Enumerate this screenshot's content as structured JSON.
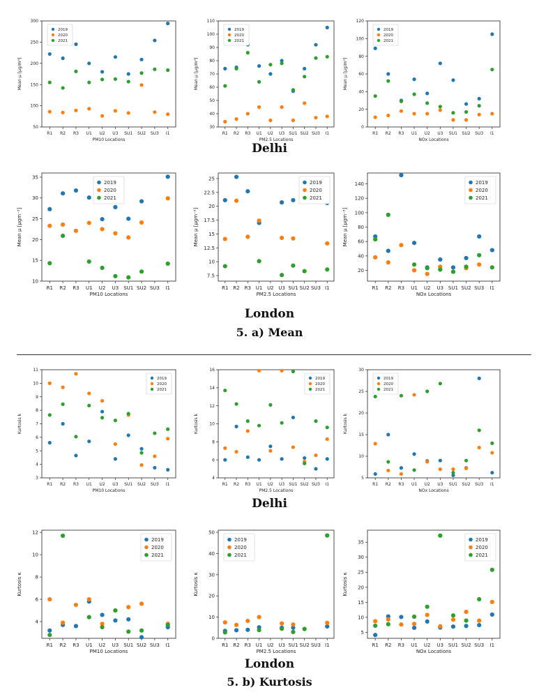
{
  "captions": {
    "delhi_mean": "Delhi",
    "london_mean": "London",
    "mean_label": "5.  a) Mean",
    "delhi_kurt": "Delhi",
    "london_kurt": "London",
    "kurt_label": "5.  b) Kurtosis"
  },
  "colors": {
    "2019": "#1f77b4",
    "2020": "#ff7f0e",
    "2021": "#2ca02c"
  },
  "chart_data": [
    {
      "id": "delhi-mean-pm10",
      "type": "scatter",
      "title": "",
      "xlabel": "PM10 Locations",
      "ylabel": "Mean μ [μg/m³]",
      "categories": [
        "R1",
        "R2",
        "R3",
        "U1",
        "U2",
        "U3",
        "SU1",
        "SU2",
        "SU3",
        "I1"
      ],
      "ylim": [
        50,
        300
      ],
      "yticks": [
        50,
        100,
        150,
        200,
        250,
        300
      ],
      "legend": "top-left",
      "series": [
        {
          "name": "2019",
          "values": [
            222,
            212,
            245,
            200,
            180,
            215,
            175,
            209,
            254,
            294
          ]
        },
        {
          "name": "2020",
          "values": [
            86,
            84,
            89,
            93,
            76,
            88,
            83,
            149,
            85,
            80
          ]
        },
        {
          "name": "2021",
          "values": [
            155,
            142,
            181,
            155,
            162,
            163,
            157,
            177,
            186,
            184
          ]
        }
      ]
    },
    {
      "id": "delhi-mean-pm25",
      "type": "scatter",
      "title": "",
      "xlabel": "PM2.5 Locations",
      "ylabel": "Mean μ [μg/m³]",
      "categories": [
        "R1",
        "R2",
        "R3",
        "U1",
        "U2",
        "U3",
        "SU1",
        "SU2",
        "SU3",
        "I1"
      ],
      "ylim": [
        30,
        110
      ],
      "yticks": [
        30,
        40,
        50,
        60,
        70,
        80,
        90,
        100,
        110
      ],
      "legend": "top-left",
      "series": [
        {
          "name": "2019",
          "values": [
            74,
            75,
            92,
            76,
            70,
            80,
            57,
            74,
            92,
            105
          ]
        },
        {
          "name": "2020",
          "values": [
            34,
            36,
            40,
            45,
            35,
            45,
            35,
            48,
            37,
            38
          ]
        },
        {
          "name": "2021",
          "values": [
            61,
            74,
            86,
            64,
            77,
            78,
            58,
            68,
            82,
            83
          ]
        }
      ]
    },
    {
      "id": "delhi-mean-nox",
      "type": "scatter",
      "title": "",
      "xlabel": "NOx Locations",
      "ylabel": "Mean μ [μg/m³]",
      "categories": [
        "R1",
        "R2",
        "R3",
        "U1",
        "U2",
        "U3",
        "SU1",
        "SU2",
        "SU3",
        "I1"
      ],
      "ylim": [
        0,
        120
      ],
      "yticks": [
        0,
        20,
        40,
        60,
        80,
        100,
        120
      ],
      "legend": "top-left",
      "series": [
        {
          "name": "2019",
          "values": [
            89,
            60,
            30,
            54,
            38,
            72,
            53,
            26,
            32,
            105
          ]
        },
        {
          "name": "2020",
          "values": [
            11,
            13,
            18,
            15,
            15,
            19,
            8,
            8,
            14,
            15
          ]
        },
        {
          "name": "2021",
          "values": [
            35,
            52,
            29,
            37,
            27,
            23,
            16,
            17,
            24,
            65
          ]
        }
      ]
    },
    {
      "id": "london-mean-pm10",
      "type": "scatter",
      "title": "",
      "xlabel": "PM10 Locations",
      "ylabel": "Mean μ [μgm⁻³]",
      "categories": [
        "R1",
        "R2",
        "R3",
        "U1",
        "U2",
        "U3",
        "SU1",
        "SU2",
        "SU3",
        "I1"
      ],
      "ylim": [
        10,
        36
      ],
      "yticks": [
        10,
        15,
        20,
        25,
        30,
        35
      ],
      "legend": "top-center",
      "series": [
        {
          "name": "2019",
          "values": [
            27.3,
            31.1,
            31.8,
            30.1,
            24.9,
            27.8,
            25.0,
            29.2,
            null,
            35.1
          ]
        },
        {
          "name": "2020",
          "values": [
            23.3,
            23.6,
            22.1,
            24.0,
            22.5,
            21.5,
            20.5,
            24.1,
            null,
            29.9
          ]
        },
        {
          "name": "2021",
          "values": [
            14.3,
            20.9,
            null,
            14.7,
            13.2,
            11.2,
            10.9,
            12.3,
            null,
            14.2
          ]
        }
      ]
    },
    {
      "id": "london-mean-pm25",
      "type": "scatter",
      "title": "",
      "xlabel": "PM2.5 Locations",
      "ylabel": "Mean μ [μgm⁻³]",
      "categories": [
        "R1",
        "R2",
        "R3",
        "U1",
        "U2",
        "U3",
        "SU1",
        "SU2",
        "SU3",
        "I1"
      ],
      "ylim": [
        6.5,
        26
      ],
      "yticks": [
        7.5,
        10.0,
        12.5,
        15.0,
        17.5,
        20.0,
        22.5,
        25.0
      ],
      "legend": "top-right",
      "series": [
        {
          "name": "2019",
          "values": [
            21.1,
            25.3,
            22.7,
            17.0,
            null,
            20.7,
            21.1,
            null,
            null,
            20.6
          ]
        },
        {
          "name": "2020",
          "values": [
            14.1,
            21.0,
            14.5,
            17.4,
            null,
            14.3,
            14.2,
            null,
            null,
            13.3
          ]
        },
        {
          "name": "2021",
          "values": [
            9.2,
            null,
            null,
            10.1,
            null,
            7.6,
            9.3,
            8.3,
            null,
            8.6
          ]
        }
      ]
    },
    {
      "id": "london-mean-nox",
      "type": "scatter",
      "title": "",
      "xlabel": "NOx Locations",
      "ylabel": "Mean μ [μgm⁻³]",
      "categories": [
        "R1",
        "R2",
        "R3",
        "U1",
        "U2",
        "U3",
        "SU1",
        "SU2",
        "SU3",
        "I1"
      ],
      "ylim": [
        5,
        155
      ],
      "yticks": [
        20,
        40,
        60,
        80,
        100,
        120,
        140
      ],
      "legend": "top-right",
      "series": [
        {
          "name": "2019",
          "values": [
            67,
            47,
            152,
            58,
            24,
            35,
            24,
            37,
            67,
            48
          ]
        },
        {
          "name": "2020",
          "values": [
            38,
            31,
            55,
            20,
            15,
            25,
            18,
            23,
            28,
            null
          ]
        },
        {
          "name": "2021",
          "values": [
            63,
            97,
            null,
            28,
            23,
            21,
            18,
            25,
            41,
            24
          ]
        }
      ]
    },
    {
      "id": "delhi-kurt-pm10",
      "type": "scatter",
      "title": "",
      "xlabel": "PM10 Locations",
      "ylabel": "Kurtosis k",
      "categories": [
        "R1",
        "R2",
        "R3",
        "U1",
        "U2",
        "U3",
        "SU1",
        "SU2",
        "SU3",
        "I1"
      ],
      "ylim": [
        3,
        11
      ],
      "yticks": [
        3,
        4,
        5,
        6,
        7,
        8,
        9,
        10,
        11
      ],
      "legend": "top-right",
      "series": [
        {
          "name": "2019",
          "values": [
            5.6,
            7.0,
            4.65,
            5.7,
            7.9,
            4.4,
            6.15,
            5.15,
            3.75,
            3.6
          ]
        },
        {
          "name": "2020",
          "values": [
            10.0,
            9.7,
            10.7,
            9.25,
            8.7,
            5.5,
            7.65,
            3.95,
            4.6,
            5.9
          ]
        },
        {
          "name": "2021",
          "values": [
            7.65,
            8.45,
            6.05,
            8.35,
            7.45,
            7.25,
            7.75,
            4.85,
            6.3,
            6.6
          ]
        }
      ]
    },
    {
      "id": "delhi-kurt-pm25",
      "type": "scatter",
      "title": "",
      "xlabel": "PM2.5 Locations",
      "ylabel": "Kurtosis k",
      "categories": [
        "R1",
        "R2",
        "R3",
        "U1",
        "U2",
        "U3",
        "SU1",
        "SU2",
        "SU3",
        "I1"
      ],
      "ylim": [
        4,
        16
      ],
      "yticks": [
        4,
        6,
        8,
        10,
        12,
        14,
        16
      ],
      "legend": "top-right",
      "series": [
        {
          "name": "2019",
          "values": [
            6.0,
            9.7,
            6.3,
            6.0,
            7.5,
            6.1,
            10.7,
            6.2,
            5.0,
            6.1
          ]
        },
        {
          "name": "2020",
          "values": [
            7.3,
            6.9,
            9.2,
            15.9,
            7.0,
            15.9,
            7.4,
            5.8,
            6.5,
            8.3
          ]
        },
        {
          "name": "2021",
          "values": [
            13.7,
            12.2,
            10.3,
            9.8,
            12.1,
            10.1,
            15.8,
            5.6,
            10.3,
            9.6
          ]
        }
      ]
    },
    {
      "id": "delhi-kurt-nox",
      "type": "scatter",
      "title": "",
      "xlabel": "NOx Locations",
      "ylabel": "Kurtosis k",
      "categories": [
        "R1",
        "R2",
        "R3",
        "U1",
        "U2",
        "U3",
        "SU1",
        "SU2",
        "SU3",
        "I1"
      ],
      "ylim": [
        5,
        30
      ],
      "yticks": [
        5,
        10,
        15,
        20,
        25,
        30
      ],
      "legend": "top-left",
      "series": [
        {
          "name": "2019",
          "values": [
            5.9,
            15.0,
            7.3,
            10.5,
            8.9,
            9.0,
            5.6,
            7.3,
            28.0,
            6.2
          ]
        },
        {
          "name": "2020",
          "values": [
            12.9,
            6.7,
            5.9,
            24.2,
            8.7,
            7.0,
            7.0,
            7.2,
            12.0,
            10.8
          ]
        },
        {
          "name": "2021",
          "values": [
            23.8,
            8.7,
            24.0,
            6.8,
            25.0,
            26.8,
            6.2,
            9.0,
            16.0,
            13.0
          ]
        }
      ]
    },
    {
      "id": "london-kurt-pm10",
      "type": "scatter",
      "title": "",
      "xlabel": "PM10 Locations",
      "ylabel": "Kurtosis κ",
      "categories": [
        "R1",
        "R2",
        "R3",
        "U1",
        "U2",
        "U3",
        "SU1",
        "SU2",
        "SU3",
        "I1"
      ],
      "ylim": [
        2.5,
        12.2
      ],
      "yticks": [
        4,
        6,
        8,
        10,
        12
      ],
      "legend": "top-right",
      "series": [
        {
          "name": "2019",
          "values": [
            3.2,
            3.7,
            3.6,
            5.8,
            4.6,
            4.1,
            4.2,
            2.6,
            null,
            3.5
          ]
        },
        {
          "name": "2020",
          "values": [
            6.0,
            3.9,
            5.5,
            6.0,
            3.8,
            5.0,
            5.3,
            5.6,
            null,
            3.8
          ]
        },
        {
          "name": "2021",
          "values": [
            2.8,
            11.7,
            null,
            4.4,
            3.5,
            5.0,
            3.1,
            3.2,
            null,
            3.7
          ]
        }
      ]
    },
    {
      "id": "london-kurt-pm25",
      "type": "scatter",
      "title": "",
      "xlabel": "PM2.5 Locations",
      "ylabel": "Kurtosis κ",
      "categories": [
        "R1",
        "R2",
        "R3",
        "U1",
        "U2",
        "U3",
        "SU1",
        "SU2",
        "SU3",
        "I1"
      ],
      "ylim": [
        0,
        51
      ],
      "yticks": [
        0,
        10,
        20,
        30,
        40,
        50
      ],
      "legend": "top-left",
      "series": [
        {
          "name": "2019",
          "values": [
            3.5,
            3.8,
            4.0,
            5.2,
            null,
            5.0,
            5.0,
            null,
            null,
            5.6
          ]
        },
        {
          "name": "2020",
          "values": [
            7.5,
            6.3,
            8.2,
            10.0,
            null,
            7.0,
            6.5,
            null,
            null,
            7.3
          ]
        },
        {
          "name": "2021",
          "values": [
            2.8,
            null,
            null,
            3.9,
            null,
            4.5,
            3.0,
            4.4,
            null,
            48.5
          ]
        }
      ]
    },
    {
      "id": "london-kurt-nox",
      "type": "scatter",
      "title": "",
      "xlabel": "NOx Locations",
      "ylabel": "Kurtosis κ",
      "categories": [
        "R1",
        "R2",
        "R3",
        "U1",
        "U2",
        "U3",
        "SU1",
        "SU2",
        "SU3",
        "I1"
      ],
      "ylim": [
        3,
        39
      ],
      "yticks": [
        5,
        10,
        15,
        20,
        25,
        30,
        35
      ],
      "legend": "top-right",
      "series": [
        {
          "name": "2019",
          "values": [
            4.1,
            10.3,
            10.1,
            6.5,
            8.6,
            6.6,
            6.9,
            7.1,
            7.4,
            10.9
          ]
        },
        {
          "name": "2020",
          "values": [
            8.7,
            9.3,
            7.6,
            7.8,
            10.8,
            7.0,
            9.2,
            11.8,
            8.9,
            15.1
          ]
        },
        {
          "name": "2021",
          "values": [
            7.2,
            7.7,
            null,
            10.2,
            13.5,
            37.2,
            10.6,
            8.9,
            16.0,
            25.8
          ]
        }
      ]
    }
  ]
}
